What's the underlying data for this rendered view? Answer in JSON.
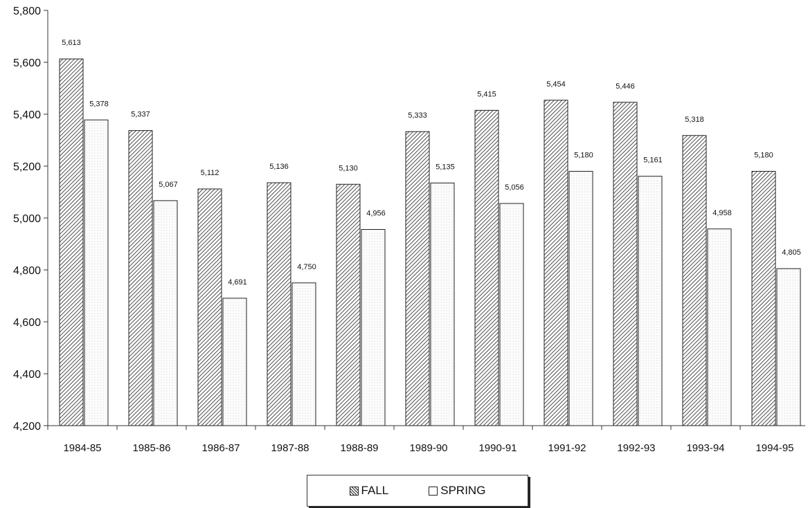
{
  "chart_data": {
    "type": "bar",
    "categories": [
      "1984-85",
      "1985-86",
      "1986-87",
      "1987-88",
      "1988-89",
      "1989-90",
      "1990-91",
      "1991-92",
      "1992-93",
      "1993-94",
      "1994-95"
    ],
    "series": [
      {
        "name": "FALL",
        "values": [
          5613,
          5337,
          5112,
          5136,
          5130,
          5333,
          5415,
          5454,
          5446,
          5318,
          5180
        ],
        "labels": [
          "5,613",
          "5,337",
          "5,112",
          "5,136",
          "5,130",
          "5,333",
          "5,415",
          "5,454",
          "5,446",
          "5,318",
          "5,180"
        ]
      },
      {
        "name": "SPRING",
        "values": [
          5378,
          5067,
          4691,
          4750,
          4956,
          5135,
          5056,
          5180,
          5161,
          4958,
          4805
        ],
        "labels": [
          "5,378",
          "5,067",
          "4,691",
          "4,750",
          "4,956",
          "5,135",
          "5,056",
          "5,180",
          "5,161",
          "4,958",
          "4,805"
        ]
      }
    ],
    "ylim": [
      4200,
      5800
    ],
    "yticks": [
      "4,200",
      "4,400",
      "4,600",
      "4,800",
      "5,000",
      "5,200",
      "5,400",
      "5,600",
      "5,800"
    ],
    "title": "",
    "xlabel": "",
    "ylabel": "",
    "grid": false,
    "legend": {
      "position": "bottom-center",
      "entries": [
        "FALL",
        "SPRING"
      ]
    },
    "colors": {
      "fall": "#222222",
      "spring_dots": "#9a9a9a",
      "axis": "#333333"
    }
  }
}
